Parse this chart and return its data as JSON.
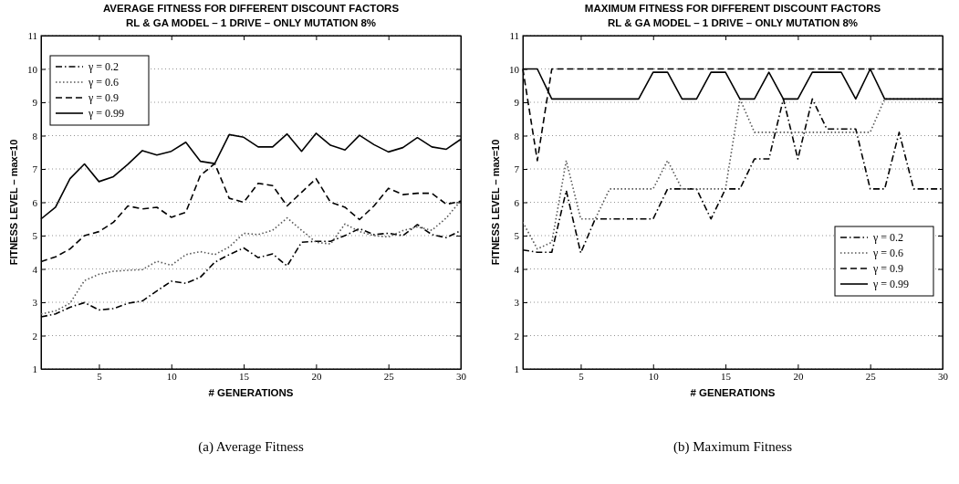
{
  "chart_data": [
    {
      "type": "line",
      "title": "AVERAGE FITNESS FOR DIFFERENT DISCOUNT FACTORS",
      "subtitle": "RL & GA MODEL – 1 DRIVE – ONLY MUTATION 8%",
      "xlabel": "# GENERATIONS",
      "ylabel": "FITNESS LEVEL – max=10",
      "annotations": [
        "(a) Average Fitness"
      ],
      "x": [
        1,
        2,
        3,
        4,
        5,
        6,
        7,
        8,
        9,
        10,
        11,
        12,
        13,
        14,
        15,
        16,
        17,
        18,
        19,
        20,
        21,
        22,
        23,
        24,
        25,
        26,
        27,
        28,
        29,
        30
      ],
      "xlim": [
        1,
        30
      ],
      "xticks": [
        5,
        10,
        15,
        20,
        25,
        30
      ],
      "ylim": [
        1,
        11
      ],
      "yticks": [
        1,
        2,
        3,
        4,
        5,
        6,
        7,
        8,
        9,
        10,
        11
      ],
      "grid": "y",
      "legend": "top left",
      "marker": "none",
      "series": [
        {
          "name": "γ = 0.2",
          "color": "#000000",
          "line_style": "dashdot",
          "values": [
            2.56,
            2.65,
            2.85,
            2.99,
            2.77,
            2.81,
            2.97,
            3.04,
            3.34,
            3.63,
            3.57,
            3.75,
            4.2,
            4.43,
            4.63,
            4.34,
            4.45,
            4.09,
            4.8,
            4.83,
            4.83,
            5.0,
            5.21,
            5.03,
            5.07,
            5.0,
            5.33,
            5.03,
            4.94,
            5.15
          ]
        },
        {
          "name": "γ = 0.6",
          "color": "#555555",
          "line_style": "dotted",
          "values": [
            2.65,
            2.74,
            2.97,
            3.65,
            3.84,
            3.93,
            3.96,
            3.98,
            4.23,
            4.11,
            4.43,
            4.52,
            4.43,
            4.66,
            5.07,
            5.03,
            5.16,
            5.53,
            5.16,
            4.8,
            4.75,
            5.35,
            5.12,
            5.0,
            4.96,
            5.15,
            5.26,
            5.16,
            5.53,
            6.05
          ]
        },
        {
          "name": "γ = 0.9",
          "color": "#000000",
          "line_style": "dashed",
          "values": [
            4.22,
            4.36,
            4.6,
            5.0,
            5.12,
            5.4,
            5.89,
            5.8,
            5.85,
            5.55,
            5.7,
            6.8,
            7.16,
            6.12,
            6.0,
            6.57,
            6.5,
            5.89,
            6.3,
            6.71,
            6.0,
            5.85,
            5.48,
            5.89,
            6.42,
            6.23,
            6.27,
            6.27,
            5.94,
            6.03
          ]
        },
        {
          "name": "γ = 0.99",
          "color": "#000000",
          "line_style": "solid",
          "values": [
            5.5,
            5.85,
            6.71,
            7.15,
            6.62,
            6.77,
            7.14,
            7.55,
            7.42,
            7.53,
            7.8,
            7.23,
            7.16,
            8.03,
            7.95,
            7.66,
            7.66,
            8.05,
            7.53,
            8.07,
            7.71,
            7.57,
            8.01,
            7.73,
            7.51,
            7.64,
            7.94,
            7.66,
            7.59,
            7.89
          ]
        }
      ]
    },
    {
      "type": "line",
      "title": "MAXIMUM FITNESS FOR DIFFERENT DISCOUNT FACTORS",
      "subtitle": "RL & GA MODEL – 1 DRIVE – ONLY MUTATION 8%",
      "xlabel": "# GENERATIONS",
      "ylabel": "FITNESS LEVEL – max=10",
      "annotations": [
        "(b) Maximum Fitness"
      ],
      "x": [
        1,
        2,
        3,
        4,
        5,
        6,
        7,
        8,
        9,
        10,
        11,
        12,
        13,
        14,
        15,
        16,
        17,
        18,
        19,
        20,
        21,
        22,
        23,
        24,
        25,
        26,
        27,
        28,
        29,
        30
      ],
      "xlim": [
        1,
        30
      ],
      "xticks": [
        5,
        10,
        15,
        20,
        25,
        30
      ],
      "ylim": [
        1,
        11
      ],
      "yticks": [
        1,
        2,
        3,
        4,
        5,
        6,
        7,
        8,
        9,
        10,
        11
      ],
      "grid": "y",
      "legend": "bottom right",
      "marker": "none",
      "series": [
        {
          "name": "γ = 0.2",
          "color": "#000000",
          "line_style": "dashdot",
          "values": [
            4.57,
            4.5,
            4.5,
            6.35,
            4.48,
            5.5,
            5.5,
            5.5,
            5.5,
            5.5,
            6.4,
            6.4,
            6.4,
            5.5,
            6.4,
            6.4,
            7.3,
            7.3,
            9.1,
            7.3,
            9.1,
            8.2,
            8.2,
            8.2,
            6.4,
            6.4,
            8.1,
            6.4,
            6.4,
            6.4
          ]
        },
        {
          "name": "γ = 0.6",
          "color": "#555555",
          "line_style": "dotted",
          "values": [
            5.4,
            4.6,
            4.8,
            7.25,
            5.5,
            5.5,
            6.4,
            6.4,
            6.4,
            6.4,
            7.25,
            6.4,
            6.4,
            6.4,
            6.4,
            9.1,
            8.1,
            8.1,
            8.1,
            8.1,
            8.1,
            8.1,
            8.1,
            8.1,
            8.1,
            9.1,
            9.1,
            9.1,
            9.1,
            9.1
          ]
        },
        {
          "name": "γ = 0.9",
          "color": "#000000",
          "line_style": "dashed",
          "values": [
            10,
            7.25,
            10,
            10,
            10,
            10,
            10,
            10,
            10,
            10,
            10,
            10,
            10,
            10,
            10,
            10,
            10,
            10,
            10,
            10,
            10,
            10,
            10,
            10,
            10,
            10,
            10,
            10,
            10,
            10
          ]
        },
        {
          "name": "γ = 0.99",
          "color": "#000000",
          "line_style": "solid",
          "values": [
            10,
            10,
            9.1,
            9.1,
            9.1,
            9.1,
            9.1,
            9.1,
            9.1,
            9.9,
            9.9,
            9.1,
            9.1,
            9.9,
            9.9,
            9.1,
            9.1,
            9.9,
            9.1,
            9.1,
            9.9,
            9.9,
            9.9,
            9.1,
            10,
            9.1,
            9.1,
            9.1,
            9.1,
            9.1
          ]
        }
      ]
    }
  ]
}
